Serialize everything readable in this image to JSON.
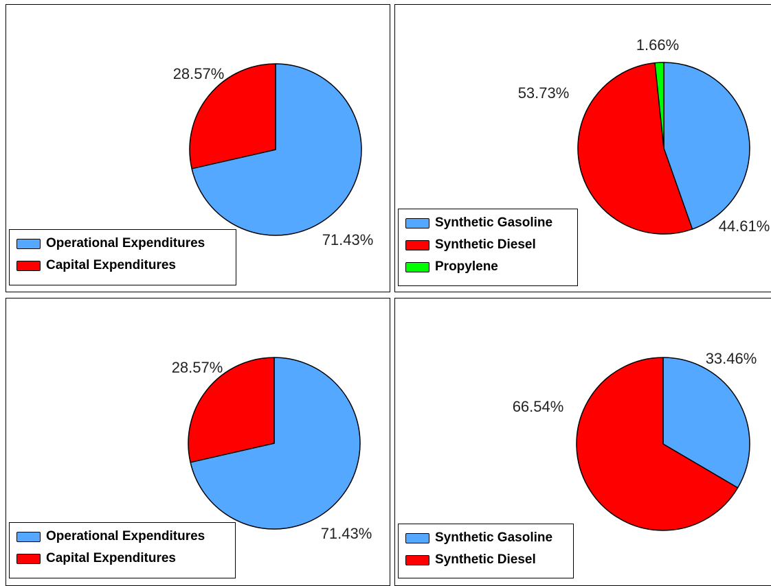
{
  "colors": {
    "blue": "#55a8ff",
    "red": "#ff0000",
    "green": "#00ff00",
    "outline": "#000000"
  },
  "chart_data": [
    {
      "type": "pie",
      "slices": [
        {
          "label": "Operational Expenditures",
          "value": 71.43,
          "value_label": "71.43%",
          "color": "#55a8ff"
        },
        {
          "label": "Capital Expenditures",
          "value": 28.57,
          "value_label": "28.57%",
          "color": "#ff0000"
        }
      ],
      "legend": [
        "Operational Expenditures",
        "Capital Expenditures"
      ],
      "legend_position": "bottom-left"
    },
    {
      "type": "pie",
      "slices": [
        {
          "label": "Synthetic Gasoline",
          "value": 44.61,
          "value_label": "44.61%",
          "color": "#55a8ff"
        },
        {
          "label": "Synthetic Diesel",
          "value": 53.73,
          "value_label": "53.73%",
          "color": "#ff0000"
        },
        {
          "label": "Propylene",
          "value": 1.66,
          "value_label": "1.66%",
          "color": "#00ff00"
        }
      ],
      "legend": [
        "Synthetic Gasoline",
        "Synthetic Diesel",
        "Propylene"
      ],
      "legend_position": "bottom-left"
    },
    {
      "type": "pie",
      "slices": [
        {
          "label": "Operational Expenditures",
          "value": 71.43,
          "value_label": "71.43%",
          "color": "#55a8ff"
        },
        {
          "label": "Capital Expenditures",
          "value": 28.57,
          "value_label": "28.57%",
          "color": "#ff0000"
        }
      ],
      "legend": [
        "Operational Expenditures",
        "Capital Expenditures"
      ],
      "legend_position": "bottom-left"
    },
    {
      "type": "pie",
      "slices": [
        {
          "label": "Synthetic Gasoline",
          "value": 33.46,
          "value_label": "33.46%",
          "color": "#55a8ff"
        },
        {
          "label": "Synthetic Diesel",
          "value": 66.54,
          "value_label": "66.54%",
          "color": "#ff0000"
        }
      ],
      "legend": [
        "Synthetic Gasoline",
        "Synthetic Diesel"
      ],
      "legend_position": "bottom-left"
    }
  ]
}
